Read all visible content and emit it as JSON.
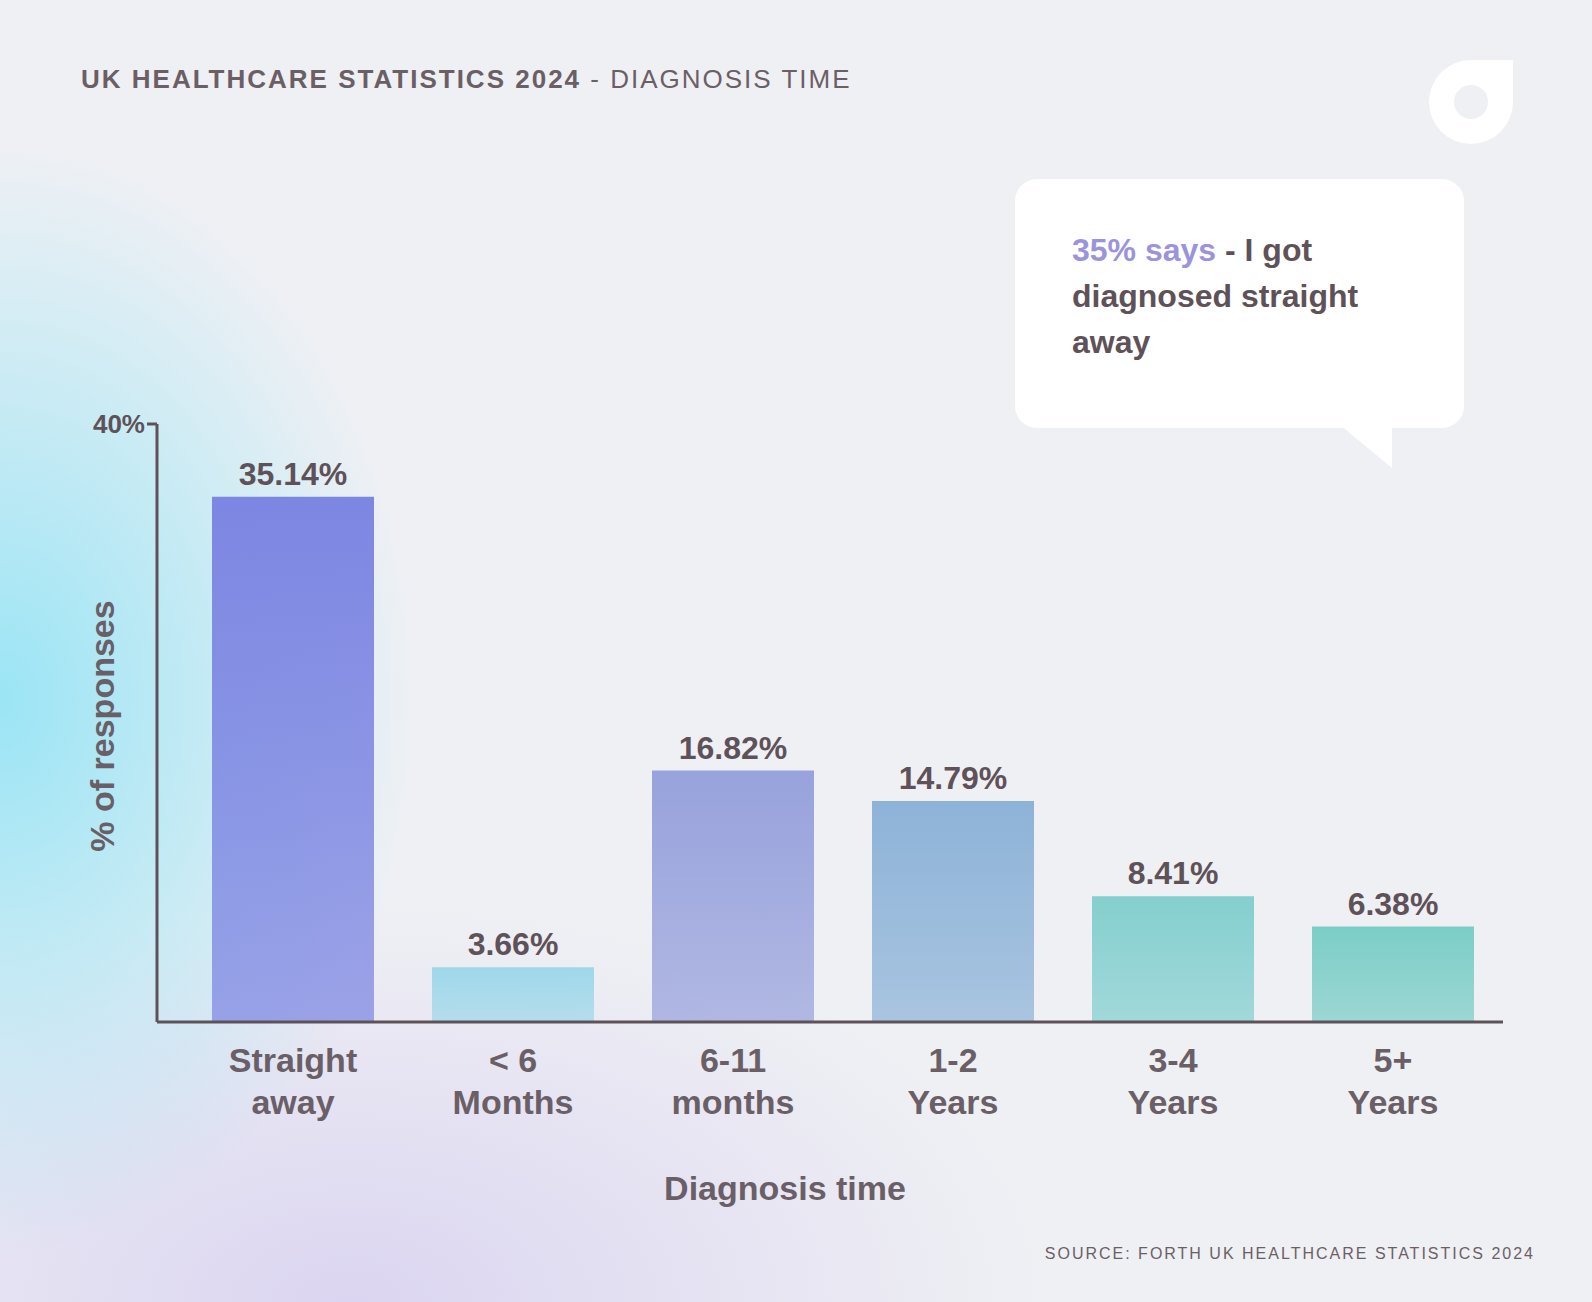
{
  "chart_data": {
    "type": "bar",
    "title": "UK HEALTHCARE STATISTICS 2024",
    "subtitle": "- DIAGNOSIS TIME",
    "x_label": "Diagnosis time",
    "y_label": "% of responses",
    "categories": [
      "Straight away",
      "< 6 Months",
      "6-11 months",
      "1-2 Years",
      "3-4 Years",
      "5+ Years"
    ],
    "values": [
      35.14,
      3.66,
      16.82,
      14.79,
      8.41,
      6.38
    ],
    "value_labels": [
      "35.14%",
      "3.66%",
      "16.82%",
      "14.79%",
      "8.41%",
      "6.38%"
    ],
    "colors": [
      "#7d86e2",
      "#9fd8ea",
      "#98a2dc",
      "#8db3d8",
      "#84cfcf",
      "#7ccdc7"
    ],
    "ylim": [
      0,
      40
    ],
    "yticks": [
      {
        "value": 40,
        "label": "40%"
      }
    ],
    "grid": false,
    "data_labels": true,
    "annotations": [
      {
        "highlight": "35% says",
        "text": "- I got diagnosed straight away"
      }
    ],
    "source": "SOURCE: FORTH UK HEALTHCARE STATISTICS 2024"
  }
}
